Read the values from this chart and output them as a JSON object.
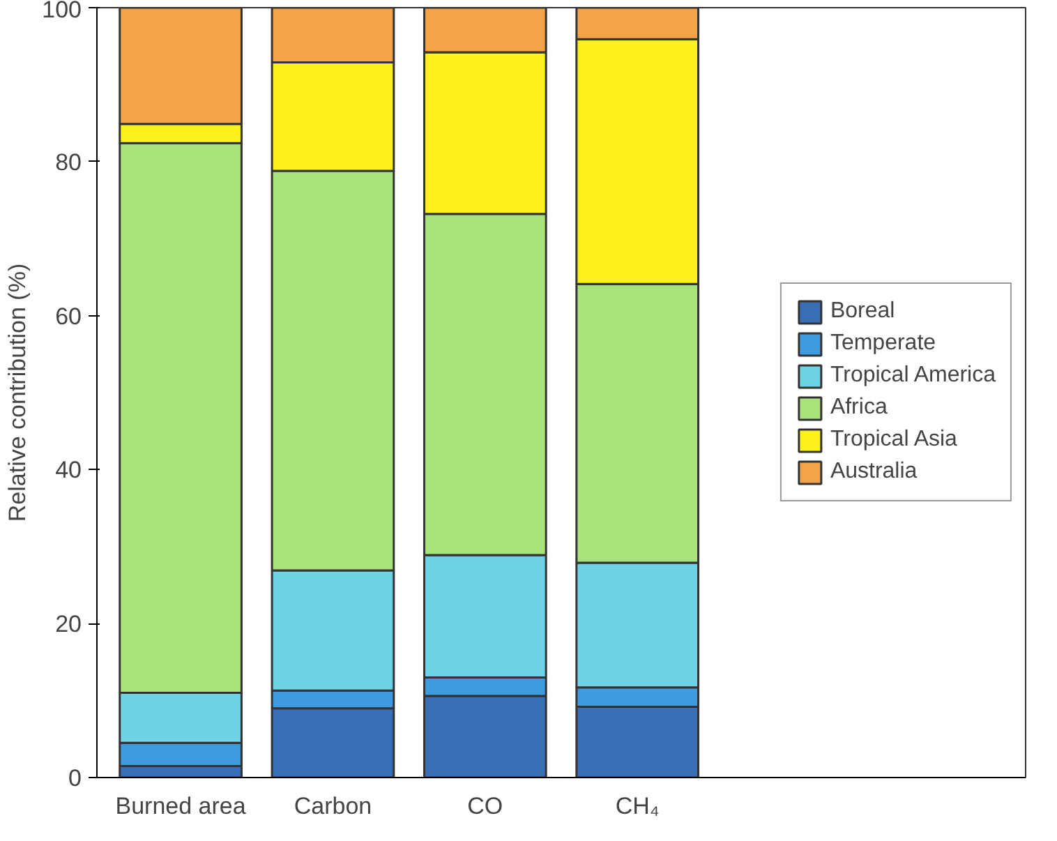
{
  "chart_data": {
    "type": "bar",
    "stacked": true,
    "ylabel": "Relative contribution (%)",
    "categories": [
      "Burned area",
      "Carbon",
      "CO",
      "CH₄"
    ],
    "ylim": [
      0,
      100
    ],
    "yticks": [
      0,
      20,
      40,
      60,
      80,
      100
    ],
    "grid": false,
    "legend": "right",
    "series": [
      {
        "name": "Boreal",
        "color": "#3a6fb8",
        "values": [
          1.5,
          9.0,
          10.6,
          9.2
        ]
      },
      {
        "name": "Temperate",
        "color": "#3d9be0",
        "values": [
          3.0,
          2.3,
          2.4,
          2.5
        ]
      },
      {
        "name": "Tropical America",
        "color": "#6fd3e6",
        "values": [
          6.5,
          15.6,
          15.9,
          16.2
        ]
      },
      {
        "name": "Africa",
        "color": "#a8e27a",
        "values": [
          71.4,
          51.9,
          44.3,
          36.2
        ]
      },
      {
        "name": "Tropical Asia",
        "color": "#fcf21a",
        "values": [
          2.5,
          14.1,
          21.0,
          31.8
        ]
      },
      {
        "name": "Australia",
        "color": "#f3a448",
        "values": [
          15.1,
          7.1,
          5.8,
          4.1
        ]
      }
    ]
  }
}
